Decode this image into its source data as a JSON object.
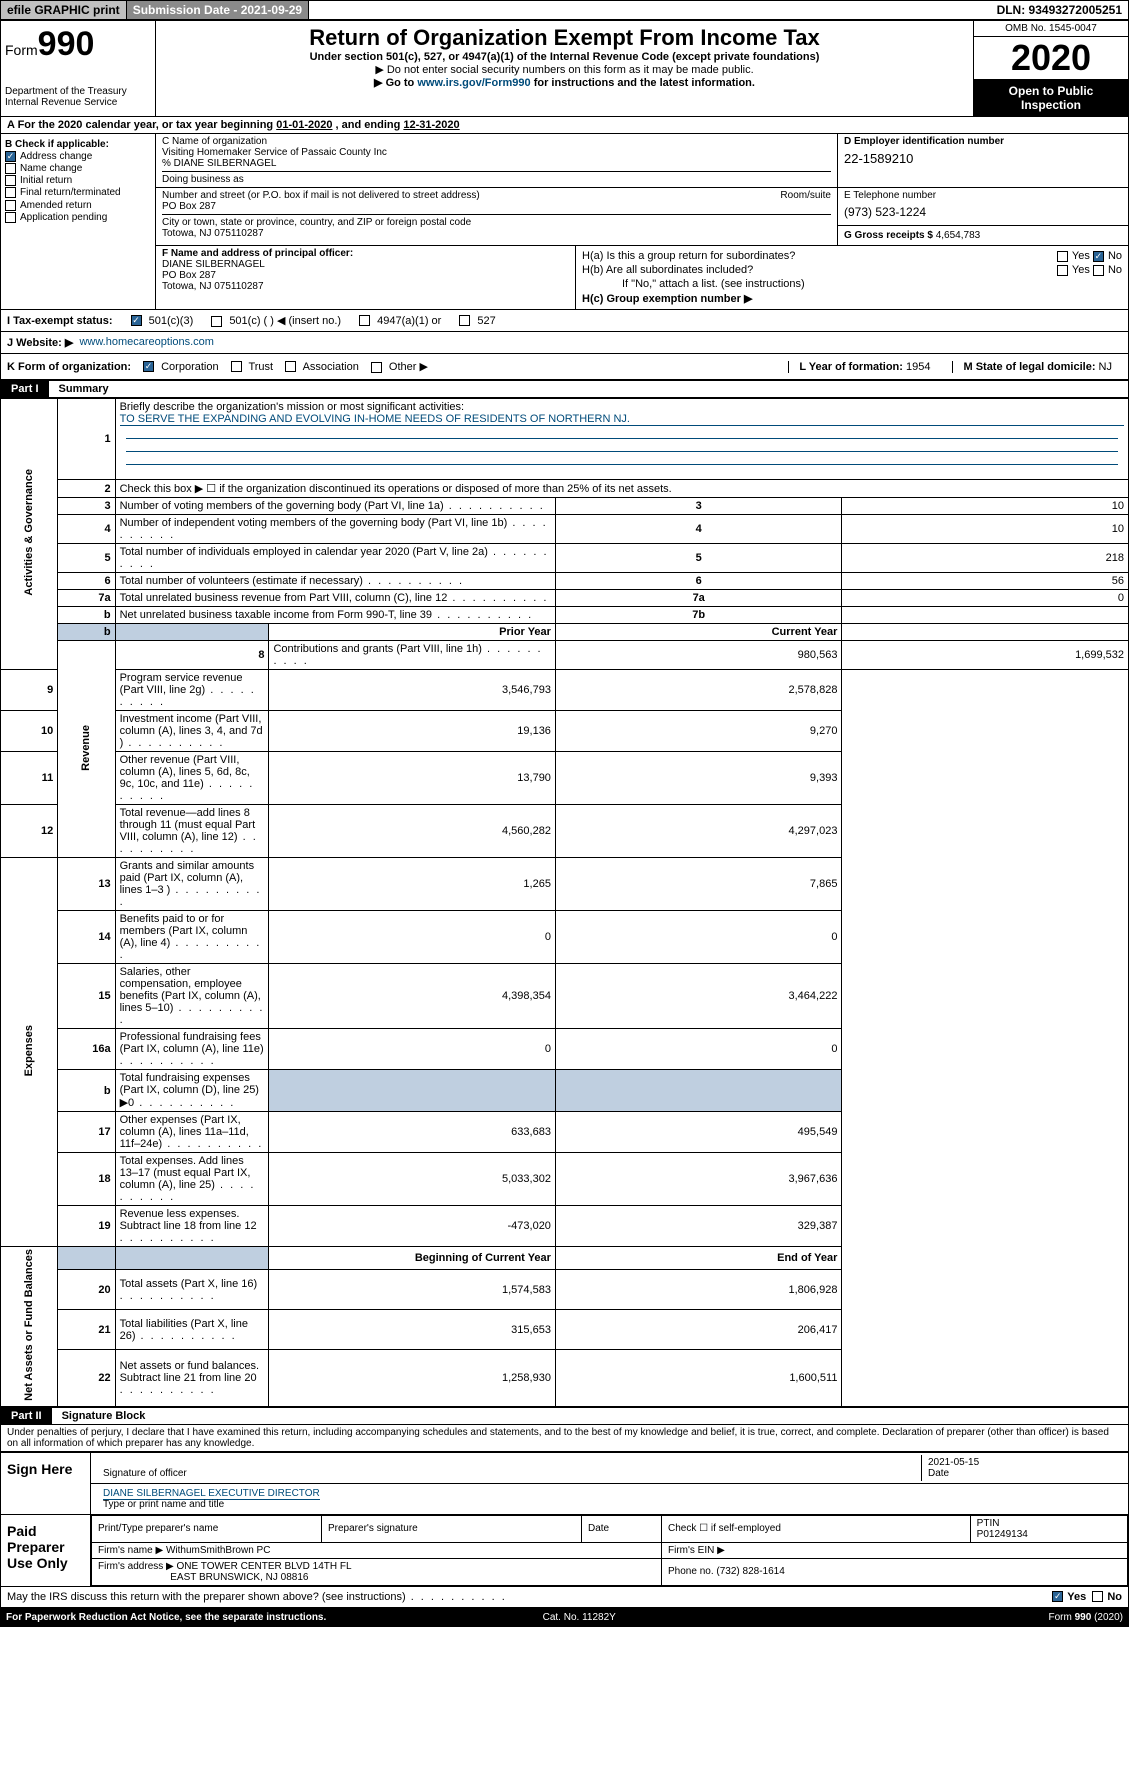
{
  "topbar": {
    "efile": "efile GRAPHIC print",
    "sub_label": "Submission Date - 2021-09-29",
    "dln": "DLN: 93493272005251"
  },
  "header": {
    "form_prefix": "Form",
    "form_num": "990",
    "dept": "Department of the Treasury\nInternal Revenue Service",
    "title": "Return of Organization Exempt From Income Tax",
    "sub": "Under section 501(c), 527, or 4947(a)(1) of the Internal Revenue Code (except private foundations)",
    "note1": "▶ Do not enter social security numbers on this form as it may be made public.",
    "note2_pre": "▶ Go to ",
    "note2_link": "www.irs.gov/Form990",
    "note2_post": " for instructions and the latest information.",
    "omb": "OMB No. 1545-0047",
    "year": "2020",
    "open": "Open to Public Inspection"
  },
  "period": {
    "line_a": "A For the 2020 calendar year, or tax year beginning ",
    "begin": "01-01-2020",
    "mid": " , and ending ",
    "end": "12-31-2020"
  },
  "b": {
    "label": "B Check if applicable:",
    "items": [
      "Address change",
      "Name change",
      "Initial return",
      "Final return/terminated",
      "Amended return",
      "Application pending"
    ],
    "checked": [
      true,
      false,
      false,
      false,
      false,
      false
    ]
  },
  "c": {
    "label": "C Name of organization",
    "name": "Visiting Homemaker Service of Passaic County Inc",
    "care": "% DIANE SILBERNAGEL",
    "dba_label": "Doing business as",
    "addr_label": "Number and street (or P.O. box if mail is not delivered to street address)",
    "room_label": "Room/suite",
    "addr": "PO Box 287",
    "city_label": "City or town, state or province, country, and ZIP or foreign postal code",
    "city": "Totowa, NJ  075110287"
  },
  "d": {
    "label": "D Employer identification number",
    "val": "22-1589210"
  },
  "e": {
    "label": "E Telephone number",
    "val": "(973) 523-1224"
  },
  "g": {
    "label": "G Gross receipts $",
    "val": "4,654,783"
  },
  "f": {
    "label": "F Name and address of principal officer:",
    "name": "DIANE SILBERNAGEL",
    "addr1": "PO Box 287",
    "addr2": "Totowa, NJ  075110287"
  },
  "h": {
    "a": "H(a)  Is this a group return for subordinates?",
    "b": "H(b)  Are all subordinates included?",
    "b_note": "If \"No,\" attach a list. (see instructions)",
    "c": "H(c)  Group exemption number ▶",
    "yes": "Yes",
    "no": "No"
  },
  "i": {
    "label": "I  Tax-exempt status:",
    "o1": "501(c)(3)",
    "o2": "501(c) (   ) ◀ (insert no.)",
    "o3": "4947(a)(1) or",
    "o4": "527"
  },
  "j": {
    "label": "J  Website: ▶",
    "val": "www.homecareoptions.com"
  },
  "k": {
    "label": "K Form of organization:",
    "o1": "Corporation",
    "o2": "Trust",
    "o3": "Association",
    "o4": "Other ▶",
    "l": "L Year of formation: ",
    "lval": "1954",
    "m": "M State of legal domicile: ",
    "mval": "NJ"
  },
  "part1": {
    "hdr": "Part I",
    "title": "Summary"
  },
  "summary": {
    "q1": "Briefly describe the organization's mission or most significant activities:",
    "mission": "TO SERVE THE EXPANDING AND EVOLVING IN-HOME NEEDS OF RESIDENTS OF NORTHERN NJ.",
    "q2": "Check this box ▶ ☐  if the organization discontinued its operations or disposed of more than 25% of its net assets.",
    "rows_simple": [
      {
        "n": "3",
        "d": "Number of voting members of the governing body (Part VI, line 1a)",
        "b": "3",
        "v": "10"
      },
      {
        "n": "4",
        "d": "Number of independent voting members of the governing body (Part VI, line 1b)",
        "b": "4",
        "v": "10"
      },
      {
        "n": "5",
        "d": "Total number of individuals employed in calendar year 2020 (Part V, line 2a)",
        "b": "5",
        "v": "218"
      },
      {
        "n": "6",
        "d": "Total number of volunteers (estimate if necessary)",
        "b": "6",
        "v": "56"
      },
      {
        "n": "7a",
        "d": "Total unrelated business revenue from Part VIII, column (C), line 12",
        "b": "7a",
        "v": "0"
      },
      {
        "n": "b",
        "d": "Net unrelated business taxable income from Form 990-T, line 39",
        "b": "7b",
        "v": ""
      }
    ],
    "col_hdr_b": "b",
    "col_prior": "Prior Year",
    "col_curr": "Current Year",
    "vtabs": [
      "Activities & Governance",
      "Revenue",
      "Expenses",
      "Net Assets or Fund Balances"
    ],
    "rows_py": [
      {
        "n": "8",
        "d": "Contributions and grants (Part VIII, line 1h)",
        "p": "980,563",
        "c": "1,699,532"
      },
      {
        "n": "9",
        "d": "Program service revenue (Part VIII, line 2g)",
        "p": "3,546,793",
        "c": "2,578,828"
      },
      {
        "n": "10",
        "d": "Investment income (Part VIII, column (A), lines 3, 4, and 7d )",
        "p": "19,136",
        "c": "9,270"
      },
      {
        "n": "11",
        "d": "Other revenue (Part VIII, column (A), lines 5, 6d, 8c, 9c, 10c, and 11e)",
        "p": "13,790",
        "c": "9,393"
      },
      {
        "n": "12",
        "d": "Total revenue—add lines 8 through 11 (must equal Part VIII, column (A), line 12)",
        "p": "4,560,282",
        "c": "4,297,023"
      },
      {
        "n": "13",
        "d": "Grants and similar amounts paid (Part IX, column (A), lines 1–3 )",
        "p": "1,265",
        "c": "7,865"
      },
      {
        "n": "14",
        "d": "Benefits paid to or for members (Part IX, column (A), line 4)",
        "p": "0",
        "c": "0"
      },
      {
        "n": "15",
        "d": "Salaries, other compensation, employee benefits (Part IX, column (A), lines 5–10)",
        "p": "4,398,354",
        "c": "3,464,222"
      },
      {
        "n": "16a",
        "d": "Professional fundraising fees (Part IX, column (A), line 11e)",
        "p": "0",
        "c": "0"
      },
      {
        "n": "b",
        "d": "Total fundraising expenses (Part IX, column (D), line 25) ▶0",
        "p": "",
        "c": "",
        "shade": true
      },
      {
        "n": "17",
        "d": "Other expenses (Part IX, column (A), lines 11a–11d, 11f–24e)",
        "p": "633,683",
        "c": "495,549"
      },
      {
        "n": "18",
        "d": "Total expenses. Add lines 13–17 (must equal Part IX, column (A), line 25)",
        "p": "5,033,302",
        "c": "3,967,636"
      },
      {
        "n": "19",
        "d": "Revenue less expenses. Subtract line 18 from line 12",
        "p": "-473,020",
        "c": "329,387"
      }
    ],
    "col_beg": "Beginning of Current Year",
    "col_end": "End of Year",
    "rows_na": [
      {
        "n": "20",
        "d": "Total assets (Part X, line 16)",
        "p": "1,574,583",
        "c": "1,806,928"
      },
      {
        "n": "21",
        "d": "Total liabilities (Part X, line 26)",
        "p": "315,653",
        "c": "206,417"
      },
      {
        "n": "22",
        "d": "Net assets or fund balances. Subtract line 21 from line 20",
        "p": "1,258,930",
        "c": "1,600,511"
      }
    ]
  },
  "part2": {
    "hdr": "Part II",
    "title": "Signature Block"
  },
  "sig": {
    "jurat": "Under penalties of perjury, I declare that I have examined this return, including accompanying schedules and statements, and to the best of my knowledge and belief, it is true, correct, and complete. Declaration of preparer (other than officer) is based on all information of which preparer has any knowledge.",
    "here": "Sign Here",
    "date": "2021-05-15",
    "date_l": "Date",
    "sig_l": "Signature of officer",
    "name": "DIANE SILBERNAGEL  EXECUTIVE DIRECTOR",
    "name_l": "Type or print name and title",
    "paid": "Paid Preparer Use Only",
    "pt_name_l": "Print/Type preparer's name",
    "pt_sig_l": "Preparer's signature",
    "pt_date_l": "Date",
    "self": "Check ☐ if self-employed",
    "ptin_l": "PTIN",
    "ptin": "P01249134",
    "firm_l": "Firm's name    ▶",
    "firm": "WithumSmithBrown PC",
    "fein_l": "Firm's EIN ▶",
    "faddr_l": "Firm's address ▶",
    "faddr1": "ONE TOWER CENTER BLVD 14TH FL",
    "faddr2": "EAST BRUNSWICK, NJ  08816",
    "phone_l": "Phone no.",
    "phone": "(732) 828-1614",
    "discuss": "May the IRS discuss this return with the preparer shown above? (see instructions)",
    "yes": "Yes",
    "no": "No"
  },
  "footer": {
    "pra": "For Paperwork Reduction Act Notice, see the separate instructions.",
    "cat": "Cat. No. 11282Y",
    "form": "Form 990 (2020)"
  }
}
